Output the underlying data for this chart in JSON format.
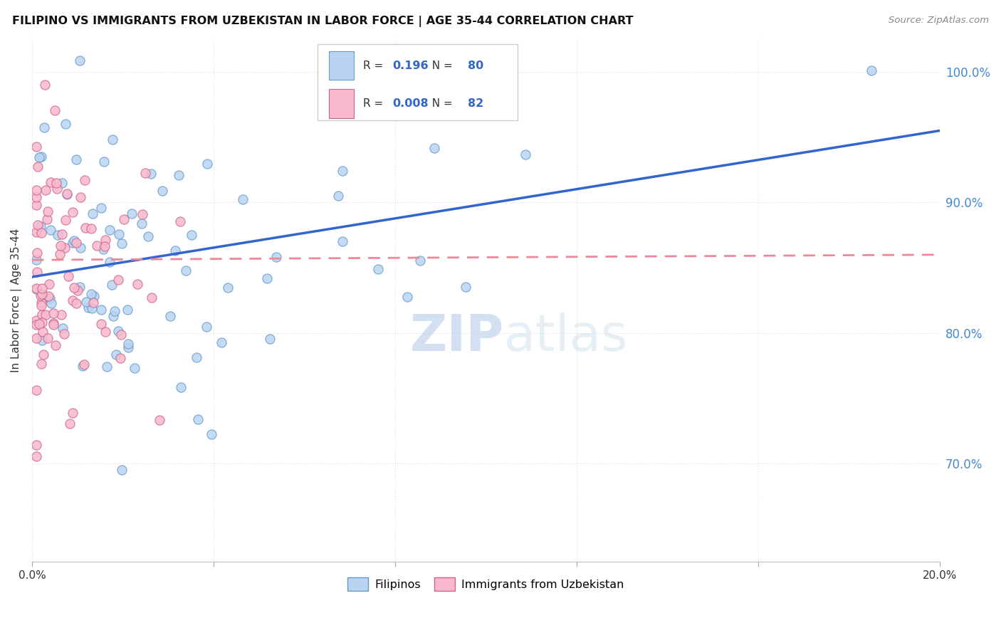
{
  "title": "FILIPINO VS IMMIGRANTS FROM UZBEKISTAN IN LABOR FORCE | AGE 35-44 CORRELATION CHART",
  "source": "Source: ZipAtlas.com",
  "ylabel": "In Labor Force | Age 35-44",
  "blue_color": "#b8d4f0",
  "blue_edge": "#6699cc",
  "pink_color": "#f9b8cc",
  "pink_edge": "#cc6688",
  "blue_line_color": "#3366cc",
  "pink_line_color": "#ee8899",
  "watermark_zip": "ZIP",
  "watermark_atlas": "atlas",
  "blue_R": 0.196,
  "pink_R": 0.008,
  "blue_N": 80,
  "pink_N": 82,
  "xlim": [
    0.0,
    0.2
  ],
  "ylim": [
    0.625,
    1.025
  ],
  "ytick_values": [
    0.7,
    0.8,
    0.9,
    1.0
  ],
  "xtick_positions": [
    0.0,
    0.04,
    0.08,
    0.12,
    0.16,
    0.2
  ],
  "grid_color": "#e0e0e0",
  "title_fontsize": 11.5,
  "source_fontsize": 9.5,
  "ytick_color": "#4488cc",
  "legend_r_color": "#3366cc",
  "legend_n_color": "#3366cc"
}
